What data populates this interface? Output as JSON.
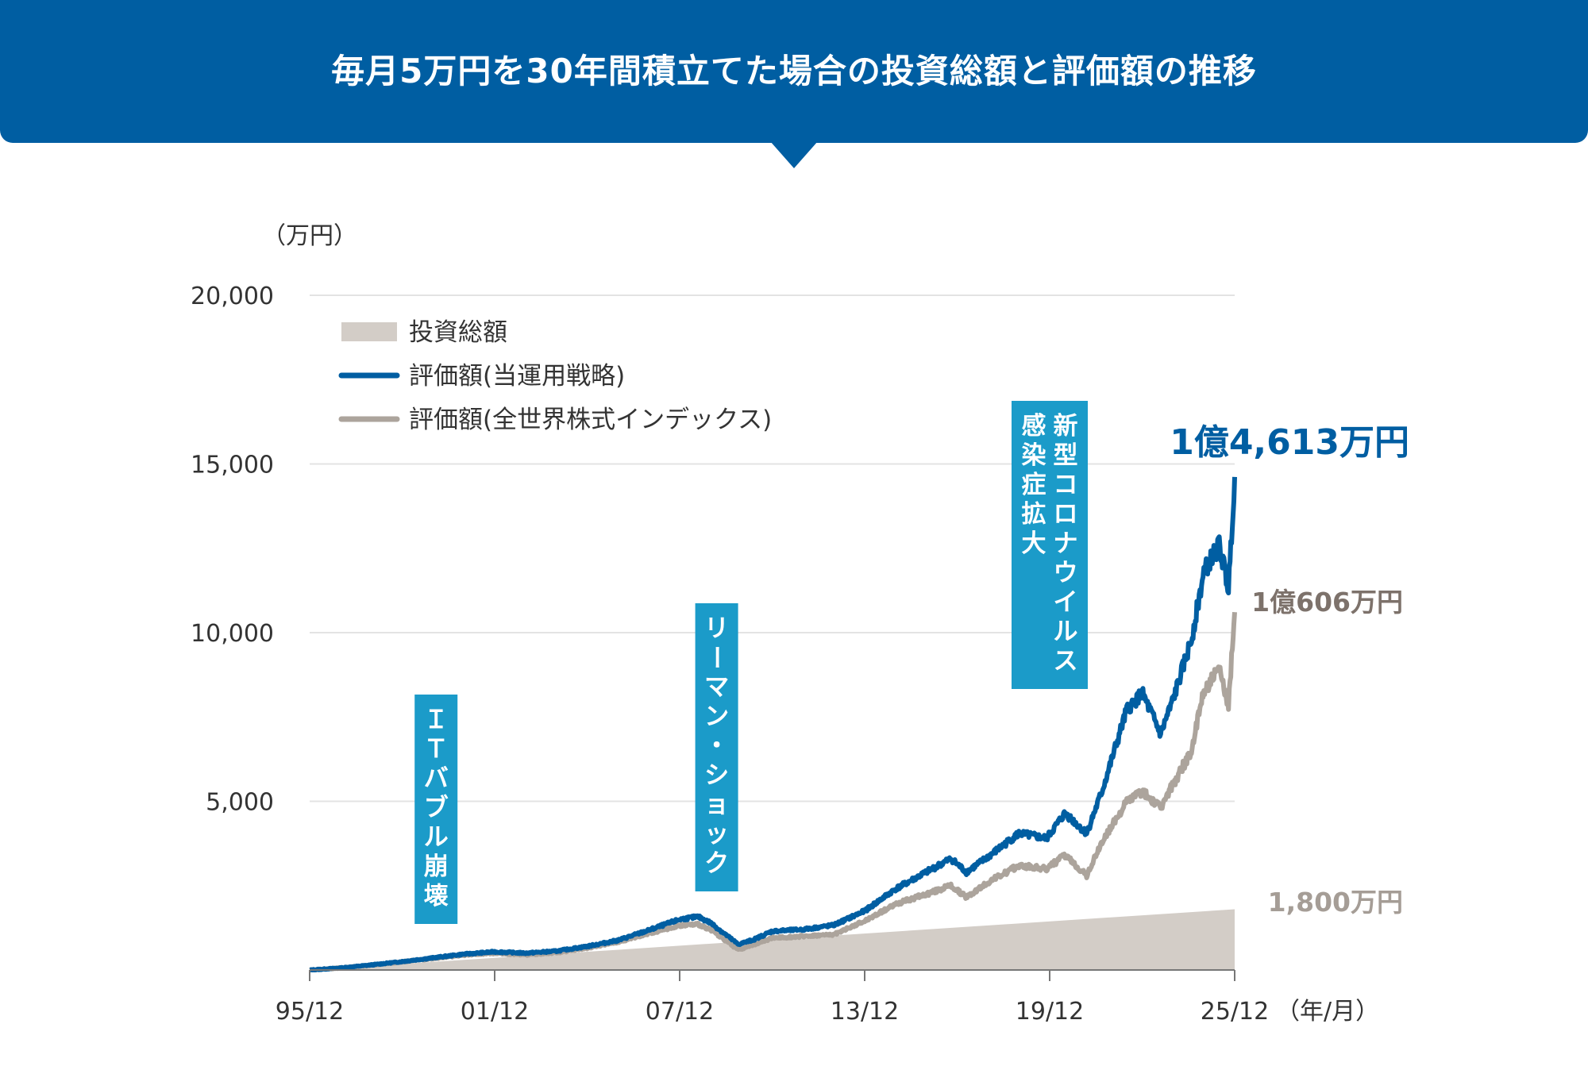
{
  "header": {
    "title": "毎月5万円を30年間積立てた場合の投資総額と評価額の推移"
  },
  "chart_data": {
    "type": "area",
    "y_unit_label": "（万円）",
    "x_unit_label": "（年/月）",
    "ylim": [
      0,
      20000
    ],
    "y_ticks": [
      {
        "value": 5000,
        "label": "5,000"
      },
      {
        "value": 10000,
        "label": "10,000"
      },
      {
        "value": 15000,
        "label": "15,000"
      },
      {
        "value": 20000,
        "label": "20,000"
      }
    ],
    "x_ticks": [
      {
        "year": 1995,
        "label": "95/12"
      },
      {
        "year": 2001,
        "label": "01/12"
      },
      {
        "year": 2007,
        "label": "07/12"
      },
      {
        "year": 2013,
        "label": "13/12"
      },
      {
        "year": 2019,
        "label": "19/12"
      },
      {
        "year": 2025,
        "label": "25/12"
      }
    ],
    "xlim": [
      1995,
      2025
    ],
    "grid": true,
    "legend_position": "top-left",
    "legend": [
      {
        "key": "invest",
        "label": "投資総額"
      },
      {
        "key": "strategy",
        "label": "評価額(当運用戦略)"
      },
      {
        "key": "world",
        "label": "評価額(全世界株式インデックス)"
      }
    ],
    "series": [
      {
        "key": "invest",
        "name": "投資総額",
        "kind": "area",
        "color": "#d3cdc7",
        "points": [
          [
            1995,
            0
          ],
          [
            2025,
            1800
          ]
        ]
      },
      {
        "key": "strategy",
        "name": "評価額(当運用戦略)",
        "kind": "line",
        "color": "#005ea2",
        "points": [
          [
            1995,
            0
          ],
          [
            1996,
            60
          ],
          [
            1997,
            150
          ],
          [
            1998,
            250
          ],
          [
            1999,
            360
          ],
          [
            2000,
            470
          ],
          [
            2001,
            540
          ],
          [
            2002,
            500
          ],
          [
            2003,
            560
          ],
          [
            2004,
            700
          ],
          [
            2005,
            880
          ],
          [
            2006,
            1180
          ],
          [
            2007,
            1500
          ],
          [
            2007.6,
            1580
          ],
          [
            2008,
            1400
          ],
          [
            2008.9,
            760
          ],
          [
            2009.4,
            900
          ],
          [
            2010,
            1150
          ],
          [
            2011,
            1200
          ],
          [
            2012,
            1330
          ],
          [
            2013,
            1750
          ],
          [
            2014,
            2400
          ],
          [
            2015,
            2900
          ],
          [
            2015.8,
            3300
          ],
          [
            2016.3,
            2900
          ],
          [
            2017,
            3350
          ],
          [
            2018,
            4050
          ],
          [
            2018.9,
            3900
          ],
          [
            2019.5,
            4650
          ],
          [
            2020.2,
            4050
          ],
          [
            2020.7,
            5300
          ],
          [
            2021.5,
            7700
          ],
          [
            2022,
            8200
          ],
          [
            2022.6,
            7000
          ],
          [
            2023,
            8000
          ],
          [
            2023.6,
            9800
          ],
          [
            2024,
            11800
          ],
          [
            2024.5,
            12600
          ],
          [
            2024.8,
            11300
          ],
          [
            2025,
            14613
          ]
        ]
      },
      {
        "key": "world",
        "name": "評価額(全世界株式インデックス)",
        "kind": "line",
        "color": "#aca49c",
        "points": [
          [
            1995,
            0
          ],
          [
            1996,
            60
          ],
          [
            1997,
            140
          ],
          [
            1998,
            240
          ],
          [
            1999,
            340
          ],
          [
            2000,
            440
          ],
          [
            2001,
            500
          ],
          [
            2002,
            450
          ],
          [
            2003,
            510
          ],
          [
            2004,
            650
          ],
          [
            2005,
            830
          ],
          [
            2006,
            1080
          ],
          [
            2007,
            1320
          ],
          [
            2007.6,
            1350
          ],
          [
            2008,
            1200
          ],
          [
            2008.9,
            600
          ],
          [
            2009.4,
            750
          ],
          [
            2010,
            950
          ],
          [
            2011,
            1000
          ],
          [
            2012,
            1050
          ],
          [
            2013,
            1450
          ],
          [
            2014,
            1950
          ],
          [
            2015,
            2250
          ],
          [
            2015.8,
            2500
          ],
          [
            2016.3,
            2150
          ],
          [
            2017,
            2600
          ],
          [
            2018,
            3100
          ],
          [
            2018.9,
            3000
          ],
          [
            2019.5,
            3400
          ],
          [
            2020.2,
            2800
          ],
          [
            2020.7,
            3800
          ],
          [
            2021.5,
            5000
          ],
          [
            2022,
            5300
          ],
          [
            2022.6,
            4800
          ],
          [
            2023,
            5500
          ],
          [
            2023.6,
            6500
          ],
          [
            2024,
            8300
          ],
          [
            2024.5,
            8900
          ],
          [
            2024.8,
            7800
          ],
          [
            2025,
            10606
          ]
        ]
      }
    ],
    "end_labels": {
      "strategy": "1億4,613万円",
      "world": "1億606万円",
      "invest": "1,800万円"
    },
    "annotations": [
      {
        "text": "ＩＴバブル崩壊",
        "x": 1999.1
      },
      {
        "text": "リーマン・ショック",
        "x": 2008.2
      },
      {
        "text": "新型コロナウイルス感染症拡大",
        "x": 2019
      }
    ]
  }
}
